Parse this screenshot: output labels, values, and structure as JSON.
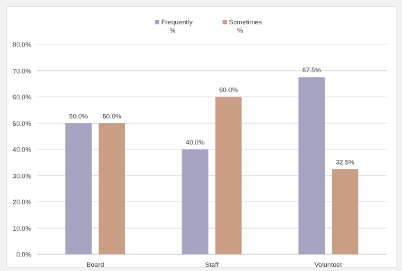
{
  "chart_data": {
    "type": "bar",
    "categories": [
      "Board",
      "Staff",
      "Volunteer"
    ],
    "series": [
      {
        "name": "Frequently %",
        "legend_lines": [
          "Frequently",
          "%"
        ],
        "color": "#a5a5c3",
        "values": [
          50.0,
          40.0,
          67.5
        ],
        "labels": [
          "50.0%",
          "40.0%",
          "67.5%"
        ]
      },
      {
        "name": "Sometimes %",
        "legend_lines": [
          "Sometimes",
          "%"
        ],
        "color": "#c99e84",
        "values": [
          50.0,
          60.0,
          32.5
        ],
        "labels": [
          "50.0%",
          "60.0%",
          "32.5%"
        ]
      }
    ],
    "ylim": [
      0,
      80
    ],
    "yticks": [
      "0.0%",
      "10.0%",
      "20.0%",
      "30.0%",
      "40.0%",
      "50.0%",
      "60.0%",
      "70.0%",
      "80.0%"
    ],
    "grid": true,
    "gridline_color": "#d9d9d9",
    "legend_position": "top-center"
  }
}
